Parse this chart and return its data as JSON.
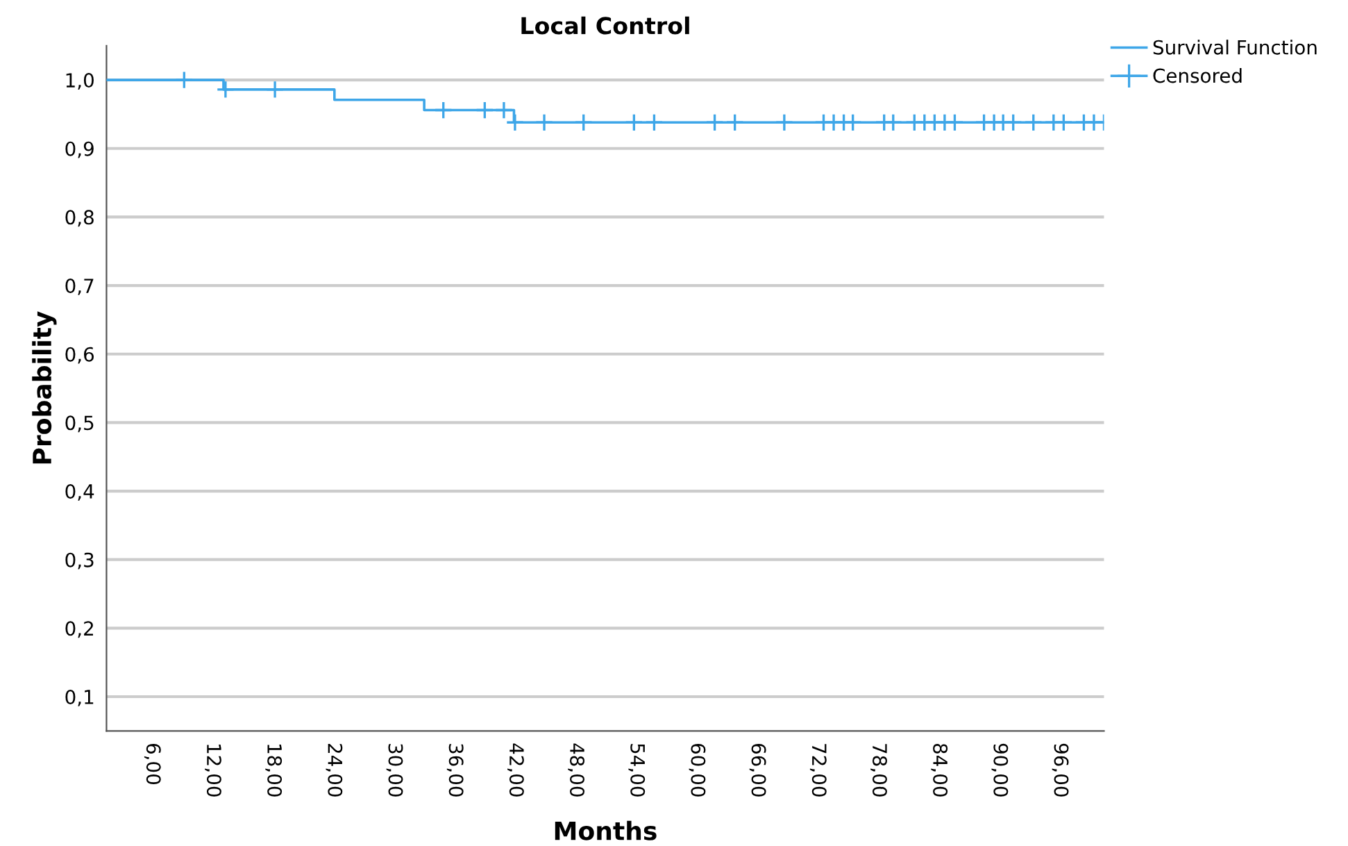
{
  "chart_data": {
    "type": "step",
    "title": "Local Control",
    "xlabel": "Months",
    "ylabel": "Probability",
    "series": [
      {
        "name": "Survival Function",
        "color": "#3ea6e8",
        "x": [
          1.5,
          13.1,
          24.1,
          33.0,
          41.9,
          100.4
        ],
        "values": [
          1.0,
          0.986,
          0.971,
          0.956,
          0.938,
          0.938
        ],
        "marker": "none"
      },
      {
        "name": "Censored",
        "type": "scatter",
        "color": "#3ea6e8",
        "marker": "cross",
        "x": [
          9.2,
          13.3,
          18.2,
          34.9,
          39.0,
          40.9,
          42.0,
          44.9,
          48.8,
          53.8,
          55.8,
          61.8,
          63.8,
          68.7,
          72.6,
          73.6,
          74.6,
          75.5,
          78.6,
          79.5,
          81.6,
          82.6,
          83.6,
          84.6,
          85.6,
          88.5,
          89.5,
          90.4,
          91.4,
          93.4,
          95.4,
          96.4,
          98.4,
          99.4,
          100.4
        ],
        "values": [
          1.0,
          0.986,
          0.986,
          0.956,
          0.956,
          0.956,
          0.938,
          0.938,
          0.938,
          0.938,
          0.938,
          0.938,
          0.938,
          0.938,
          0.938,
          0.938,
          0.938,
          0.938,
          0.938,
          0.938,
          0.938,
          0.938,
          0.938,
          0.938,
          0.938,
          0.938,
          0.938,
          0.938,
          0.938,
          0.938,
          0.938,
          0.938,
          0.938,
          0.938,
          0.938
        ]
      }
    ],
    "xlim": [
      1.5,
      100.4
    ],
    "ylim": [
      0.05,
      1.05
    ],
    "xticks": [
      {
        "value": 6,
        "label": "6,00"
      },
      {
        "value": 12,
        "label": "12,00"
      },
      {
        "value": 18,
        "label": "18,00"
      },
      {
        "value": 24,
        "label": "24,00"
      },
      {
        "value": 30,
        "label": "30,00"
      },
      {
        "value": 36,
        "label": "36,00"
      },
      {
        "value": 42,
        "label": "42,00"
      },
      {
        "value": 48,
        "label": "48,00"
      },
      {
        "value": 54,
        "label": "54,00"
      },
      {
        "value": 60,
        "label": "60,00"
      },
      {
        "value": 66,
        "label": "66,00"
      },
      {
        "value": 72,
        "label": "72,00"
      },
      {
        "value": 78,
        "label": "78,00"
      },
      {
        "value": 84,
        "label": "84,00"
      },
      {
        "value": 90,
        "label": "90,00"
      },
      {
        "value": 96,
        "label": "96,00"
      }
    ],
    "yticks": [
      {
        "value": 0.1,
        "label": "0,1"
      },
      {
        "value": 0.2,
        "label": "0,2"
      },
      {
        "value": 0.3,
        "label": "0,3"
      },
      {
        "value": 0.4,
        "label": "0,4"
      },
      {
        "value": 0.5,
        "label": "0,5"
      },
      {
        "value": 0.6,
        "label": "0,6"
      },
      {
        "value": 0.7,
        "label": "0,7"
      },
      {
        "value": 0.8,
        "label": "0,8"
      },
      {
        "value": 0.9,
        "label": "0,9"
      },
      {
        "value": 1.0,
        "label": "1,0"
      }
    ],
    "grid": "y",
    "legend": "top right"
  }
}
